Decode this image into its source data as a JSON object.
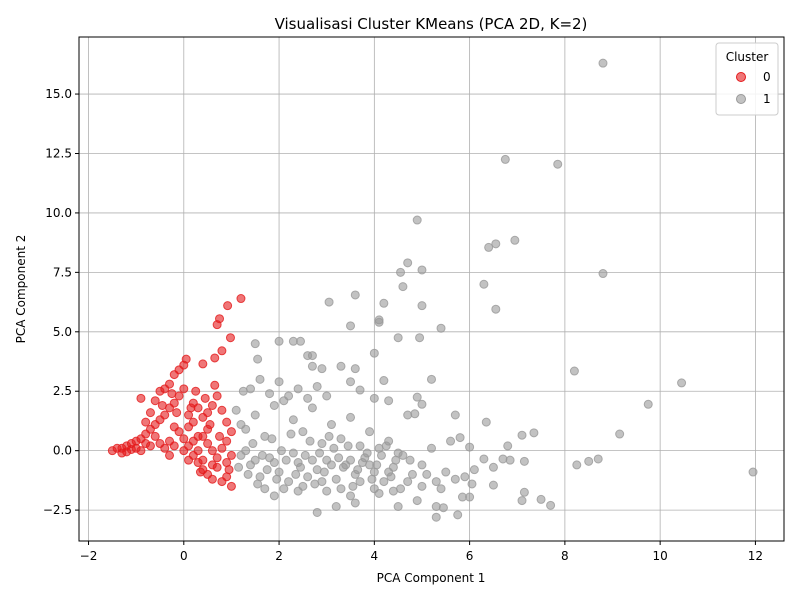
{
  "chart_data": {
    "type": "scatter",
    "title": "Visualisasi Cluster KMeans (PCA 2D, K=2)",
    "xlabel": "PCA Component 1",
    "ylabel": "PCA Component 2",
    "xlim": [
      -2.2,
      12.6
    ],
    "ylim": [
      -3.8,
      17.4
    ],
    "x_ticks": [
      -2,
      0,
      2,
      4,
      6,
      8,
      10,
      12
    ],
    "y_ticks": [
      -2.5,
      0.0,
      2.5,
      5.0,
      7.5,
      10.0,
      12.5,
      15.0
    ],
    "grid": true,
    "legend": {
      "title": "Cluster",
      "placement": "top-right",
      "entries": [
        {
          "label": "0",
          "color": "#e41a1c"
        },
        {
          "label": "1",
          "color": "#999999"
        }
      ]
    },
    "series": [
      {
        "name": "0",
        "color": "#e41a1c",
        "points": [
          [
            -1.5,
            0.0
          ],
          [
            -1.4,
            0.1
          ],
          [
            -1.3,
            -0.1
          ],
          [
            -1.2,
            0.2
          ],
          [
            -1.1,
            0.3
          ],
          [
            -1.0,
            0.4
          ],
          [
            -0.9,
            0.5
          ],
          [
            -0.8,
            0.7
          ],
          [
            -0.7,
            0.9
          ],
          [
            -0.6,
            1.1
          ],
          [
            -0.5,
            1.3
          ],
          [
            -0.4,
            1.5
          ],
          [
            -0.3,
            1.8
          ],
          [
            -0.2,
            2.0
          ],
          [
            -0.1,
            2.3
          ],
          [
            0.0,
            2.6
          ],
          [
            -0.6,
            2.1
          ],
          [
            -0.5,
            2.5
          ],
          [
            -0.4,
            2.6
          ],
          [
            -0.3,
            2.8
          ],
          [
            -0.2,
            3.2
          ],
          [
            -0.1,
            3.4
          ],
          [
            0.0,
            3.6
          ],
          [
            0.05,
            3.85
          ],
          [
            -0.8,
            1.2
          ],
          [
            -0.7,
            1.6
          ],
          [
            -0.9,
            2.2
          ],
          [
            -0.2,
            1.0
          ],
          [
            -0.1,
            0.8
          ],
          [
            0.0,
            0.5
          ],
          [
            0.1,
            0.2
          ],
          [
            0.2,
            -0.2
          ],
          [
            0.3,
            -0.5
          ],
          [
            0.4,
            -0.8
          ],
          [
            0.5,
            -1.0
          ],
          [
            0.6,
            -0.6
          ],
          [
            0.7,
            -0.3
          ],
          [
            0.8,
            0.1
          ],
          [
            0.9,
            0.4
          ],
          [
            1.0,
            -0.2
          ],
          [
            1.0,
            -1.5
          ],
          [
            0.9,
            -1.1
          ],
          [
            0.8,
            -1.3
          ],
          [
            0.6,
            -1.2
          ],
          [
            0.4,
            -0.4
          ],
          [
            0.3,
            0.6
          ],
          [
            0.2,
            1.2
          ],
          [
            0.1,
            1.5
          ],
          [
            0.2,
            2.0
          ],
          [
            0.3,
            1.8
          ],
          [
            0.4,
            1.4
          ],
          [
            0.5,
            1.6
          ],
          [
            0.6,
            1.9
          ],
          [
            0.7,
            2.3
          ],
          [
            0.8,
            1.7
          ],
          [
            0.9,
            1.2
          ],
          [
            1.0,
            0.8
          ],
          [
            0.65,
            2.75
          ],
          [
            0.7,
            5.3
          ],
          [
            0.75,
            5.55
          ],
          [
            0.8,
            4.2
          ],
          [
            0.65,
            3.9
          ],
          [
            0.4,
            3.65
          ],
          [
            0.92,
            6.1
          ],
          [
            1.2,
            6.4
          ],
          [
            0.98,
            4.75
          ],
          [
            -1.3,
            0.1
          ],
          [
            -1.2,
            -0.05
          ],
          [
            -1.0,
            0.1
          ],
          [
            -0.9,
            0.0
          ],
          [
            -0.7,
            0.2
          ],
          [
            -0.5,
            0.3
          ],
          [
            -0.4,
            0.1
          ],
          [
            -0.3,
            -0.2
          ],
          [
            -0.2,
            0.2
          ],
          [
            0.0,
            0.0
          ],
          [
            0.1,
            -0.4
          ],
          [
            0.2,
            0.4
          ],
          [
            0.3,
            0.0
          ],
          [
            0.5,
            0.3
          ],
          [
            0.6,
            0.0
          ],
          [
            0.7,
            -0.7
          ],
          [
            0.9,
            -0.5
          ],
          [
            0.5,
            0.9
          ],
          [
            0.4,
            0.6
          ],
          [
            -0.6,
            0.6
          ],
          [
            -0.8,
            0.3
          ],
          [
            -1.1,
            0.05
          ],
          [
            -0.3,
            0.4
          ],
          [
            0.1,
            1.0
          ],
          [
            -0.45,
            1.9
          ],
          [
            -0.25,
            2.4
          ],
          [
            -0.15,
            1.6
          ],
          [
            0.15,
            1.8
          ],
          [
            0.25,
            2.5
          ],
          [
            0.45,
            2.2
          ],
          [
            0.55,
            1.1
          ],
          [
            0.35,
            -0.9
          ],
          [
            0.75,
            0.6
          ],
          [
            0.95,
            -0.8
          ]
        ]
      },
      {
        "name": "1",
        "color": "#999999",
        "points": [
          [
            8.8,
            16.3
          ],
          [
            6.75,
            12.25
          ],
          [
            7.85,
            12.05
          ],
          [
            4.9,
            9.7
          ],
          [
            6.95,
            8.85
          ],
          [
            6.55,
            8.7
          ],
          [
            6.4,
            8.55
          ],
          [
            4.7,
            7.9
          ],
          [
            4.55,
            7.5
          ],
          [
            5.0,
            7.6
          ],
          [
            8.8,
            7.45
          ],
          [
            6.3,
            7.0
          ],
          [
            4.6,
            6.9
          ],
          [
            3.6,
            6.55
          ],
          [
            3.05,
            6.25
          ],
          [
            4.2,
            6.2
          ],
          [
            5.0,
            6.1
          ],
          [
            6.55,
            5.95
          ],
          [
            4.1,
            5.4
          ],
          [
            4.1,
            5.5
          ],
          [
            3.5,
            5.25
          ],
          [
            5.4,
            5.15
          ],
          [
            4.5,
            4.75
          ],
          [
            4.95,
            4.75
          ],
          [
            2.3,
            4.6
          ],
          [
            2.45,
            4.6
          ],
          [
            2.0,
            4.6
          ],
          [
            1.5,
            4.5
          ],
          [
            4.0,
            4.1
          ],
          [
            2.6,
            4.0
          ],
          [
            2.7,
            4.0
          ],
          [
            1.55,
            3.85
          ],
          [
            2.7,
            3.55
          ],
          [
            2.9,
            3.45
          ],
          [
            3.3,
            3.55
          ],
          [
            3.6,
            3.45
          ],
          [
            8.2,
            3.35
          ],
          [
            5.2,
            3.0
          ],
          [
            10.45,
            2.85
          ],
          [
            9.75,
            1.95
          ],
          [
            3.5,
            2.9
          ],
          [
            4.2,
            2.95
          ],
          [
            3.7,
            2.55
          ],
          [
            4.0,
            2.2
          ],
          [
            4.3,
            2.1
          ],
          [
            4.9,
            2.25
          ],
          [
            5.0,
            1.95
          ],
          [
            5.7,
            1.5
          ],
          [
            4.7,
            1.5
          ],
          [
            4.85,
            1.55
          ],
          [
            6.35,
            1.2
          ],
          [
            9.15,
            0.7
          ],
          [
            7.35,
            0.75
          ],
          [
            7.1,
            0.65
          ],
          [
            6.8,
            0.2
          ],
          [
            5.8,
            0.55
          ],
          [
            5.6,
            0.4
          ],
          [
            6.0,
            0.15
          ],
          [
            6.3,
            -0.35
          ],
          [
            6.7,
            -0.35
          ],
          [
            6.85,
            -0.4
          ],
          [
            7.15,
            -0.45
          ],
          [
            8.25,
            -0.6
          ],
          [
            8.5,
            -0.45
          ],
          [
            8.7,
            -0.35
          ],
          [
            11.95,
            -0.9
          ],
          [
            7.15,
            -1.75
          ],
          [
            7.1,
            -2.1
          ],
          [
            7.5,
            -2.05
          ],
          [
            7.7,
            -2.3
          ],
          [
            6.5,
            -1.45
          ],
          [
            6.05,
            -1.4
          ],
          [
            6.0,
            -1.95
          ],
          [
            5.85,
            -1.95
          ],
          [
            5.75,
            -2.7
          ],
          [
            5.3,
            -2.35
          ],
          [
            5.3,
            -2.8
          ],
          [
            5.45,
            -2.4
          ],
          [
            4.5,
            -2.35
          ],
          [
            4.9,
            -2.1
          ],
          [
            2.8,
            -2.6
          ],
          [
            3.2,
            -2.35
          ],
          [
            3.6,
            -2.2
          ],
          [
            1.9,
            -1.9
          ],
          [
            2.4,
            -1.7
          ],
          [
            3.0,
            -1.7
          ],
          [
            3.5,
            -1.9
          ],
          [
            4.0,
            -1.6
          ],
          [
            4.4,
            -1.7
          ],
          [
            5.0,
            -1.5
          ],
          [
            5.3,
            -1.3
          ],
          [
            5.7,
            -1.2
          ],
          [
            6.1,
            -0.8
          ],
          [
            6.5,
            -0.7
          ],
          [
            1.2,
            -0.2
          ],
          [
            1.4,
            -0.6
          ],
          [
            1.6,
            -1.1
          ],
          [
            1.8,
            -0.3
          ],
          [
            2.0,
            -0.9
          ],
          [
            2.2,
            -1.3
          ],
          [
            2.4,
            -0.5
          ],
          [
            2.6,
            -1.1
          ],
          [
            2.8,
            -0.8
          ],
          [
            3.0,
            -0.4
          ],
          [
            3.2,
            -1.2
          ],
          [
            3.4,
            -0.6
          ],
          [
            3.6,
            -1.0
          ],
          [
            3.8,
            -0.3
          ],
          [
            4.0,
            -0.9
          ],
          [
            4.2,
            -1.3
          ],
          [
            4.4,
            -0.7
          ],
          [
            4.6,
            -0.2
          ],
          [
            4.8,
            -1.0
          ],
          [
            5.0,
            -0.6
          ],
          [
            5.2,
            0.1
          ],
          [
            1.3,
            0.9
          ],
          [
            1.5,
            1.5
          ],
          [
            1.7,
            0.6
          ],
          [
            1.9,
            1.9
          ],
          [
            2.1,
            2.1
          ],
          [
            2.3,
            1.3
          ],
          [
            2.5,
            0.8
          ],
          [
            2.7,
            1.8
          ],
          [
            2.9,
            0.3
          ],
          [
            3.1,
            1.1
          ],
          [
            3.3,
            0.5
          ],
          [
            3.5,
            1.4
          ],
          [
            3.7,
            0.2
          ],
          [
            3.9,
            0.8
          ],
          [
            4.1,
            0.1
          ],
          [
            4.3,
            0.4
          ],
          [
            4.5,
            -0.1
          ],
          [
            1.4,
            2.6
          ],
          [
            1.6,
            3.0
          ],
          [
            1.8,
            2.4
          ],
          [
            2.0,
            2.9
          ],
          [
            2.2,
            2.3
          ],
          [
            2.4,
            2.6
          ],
          [
            2.6,
            2.2
          ],
          [
            2.8,
            2.7
          ],
          [
            3.0,
            2.3
          ],
          [
            1.25,
            2.5
          ],
          [
            1.1,
            1.7
          ],
          [
            1.2,
            1.1
          ],
          [
            1.35,
            -1.0
          ],
          [
            1.55,
            -1.4
          ],
          [
            1.75,
            -0.8
          ],
          [
            1.95,
            -1.2
          ],
          [
            2.15,
            -0.4
          ],
          [
            2.35,
            -1.0
          ],
          [
            2.55,
            -0.2
          ],
          [
            2.75,
            -1.4
          ],
          [
            2.95,
            -0.9
          ],
          [
            3.15,
            0.1
          ],
          [
            3.35,
            -0.7
          ],
          [
            3.55,
            -1.5
          ],
          [
            3.75,
            -0.5
          ],
          [
            3.95,
            -1.2
          ],
          [
            4.15,
            -0.2
          ],
          [
            4.35,
            -1.1
          ],
          [
            4.55,
            -1.6
          ],
          [
            4.75,
            -0.4
          ],
          [
            1.45,
            0.3
          ],
          [
            1.65,
            -0.2
          ],
          [
            1.85,
            0.5
          ],
          [
            2.05,
            0.0
          ],
          [
            2.25,
            0.7
          ],
          [
            2.45,
            -0.7
          ],
          [
            2.65,
            0.4
          ],
          [
            2.85,
            -0.1
          ],
          [
            3.05,
            0.6
          ],
          [
            3.25,
            -0.3
          ],
          [
            3.45,
            0.2
          ],
          [
            3.65,
            -0.8
          ],
          [
            3.85,
            -0.1
          ],
          [
            4.05,
            -0.6
          ],
          [
            4.25,
            0.2
          ],
          [
            4.45,
            -0.4
          ],
          [
            5.1,
            -1.0
          ],
          [
            5.5,
            -0.9
          ],
          [
            1.15,
            -0.7
          ],
          [
            1.3,
            0.0
          ],
          [
            1.5,
            -0.4
          ],
          [
            1.7,
            -1.6
          ],
          [
            1.9,
            -0.5
          ],
          [
            2.1,
            -1.6
          ],
          [
            2.3,
            -0.1
          ],
          [
            2.5,
            -1.5
          ],
          [
            2.7,
            -0.4
          ],
          [
            2.9,
            -1.3
          ],
          [
            3.1,
            -0.6
          ],
          [
            3.3,
            -1.6
          ],
          [
            3.5,
            -0.4
          ],
          [
            3.7,
            -1.3
          ],
          [
            3.9,
            -0.6
          ],
          [
            4.1,
            -1.8
          ],
          [
            4.3,
            -0.9
          ],
          [
            4.7,
            -1.3
          ],
          [
            5.4,
            -1.6
          ],
          [
            5.9,
            -1.1
          ]
        ]
      }
    ]
  }
}
